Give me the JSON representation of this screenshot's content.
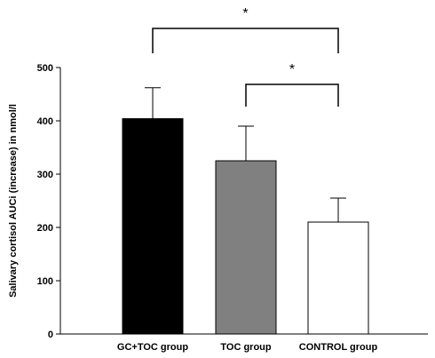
{
  "chart_data": {
    "type": "bar",
    "categories": [
      "GC+TOC group",
      "TOC group",
      "CONTROL group"
    ],
    "values": [
      404,
      325,
      210
    ],
    "errors": [
      58,
      65,
      45
    ],
    "bar_colors": [
      "#000000",
      "#808080",
      "#ffffff"
    ],
    "ylabel": "Salivary cortisol AUCi (increase) in nmol/l",
    "ylim": [
      0,
      500
    ],
    "yticks": [
      0,
      100,
      200,
      300,
      400,
      500
    ],
    "grid": false,
    "significance": [
      {
        "from": 0,
        "to": 2,
        "label": "*"
      },
      {
        "from": 1,
        "to": 2,
        "label": "*"
      }
    ]
  }
}
